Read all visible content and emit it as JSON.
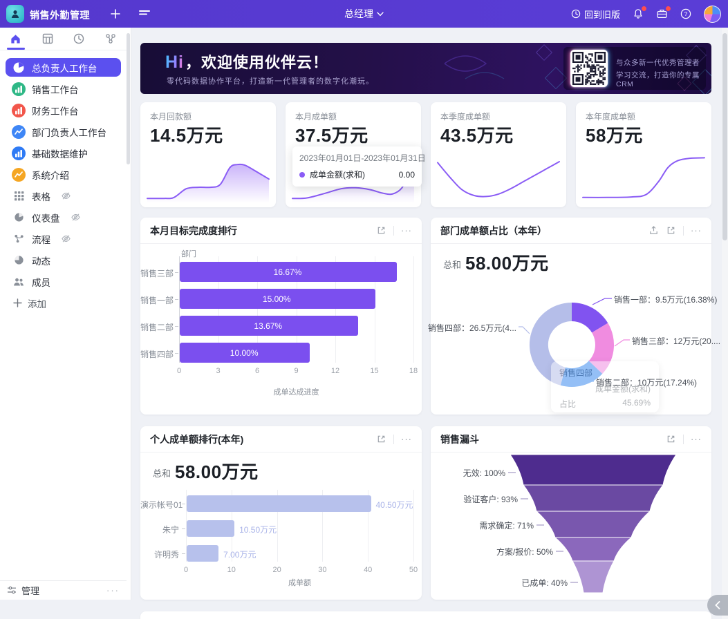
{
  "topbar": {
    "app_title": "销售外勤管理",
    "role": "总经理",
    "back_to_old_label": "回到旧版"
  },
  "sidebar": {
    "tabs": [
      {
        "icon": "home-icon",
        "active": true
      },
      {
        "icon": "table-icon",
        "active": false
      },
      {
        "icon": "clock-icon",
        "active": false
      },
      {
        "icon": "workflow-icon",
        "active": false
      }
    ],
    "items": [
      {
        "label": "总负责人工作台",
        "icon": "pie-chart-icon",
        "bg": "",
        "active": true
      },
      {
        "label": "销售工作台",
        "icon": "bar-chart-icon",
        "bg": "#2FB886"
      },
      {
        "label": "财务工作台",
        "icon": "bar-chart-icon",
        "bg": "#F2564B"
      },
      {
        "label": "部门负责人工作台",
        "icon": "line-chart-icon",
        "bg": "#3E86F6"
      },
      {
        "label": "基础数据维护",
        "icon": "bar-chart-icon",
        "bg": "#2F7BF5"
      },
      {
        "label": "系统介绍",
        "icon": "line-chart-icon",
        "bg": "#F5A623"
      },
      {
        "label": "表格",
        "icon": "grid-icon",
        "grey": true,
        "hidden_eye": true
      },
      {
        "label": "仪表盘",
        "icon": "dashboard-icon",
        "grey": true,
        "hidden_eye": true
      },
      {
        "label": "流程",
        "icon": "flow-icon",
        "grey": true,
        "hidden_eye": true
      },
      {
        "label": "动态",
        "icon": "activity-icon",
        "grey": true
      },
      {
        "label": "成员",
        "icon": "members-icon",
        "grey": true
      }
    ],
    "add_label": "添加",
    "footer_label": "管理"
  },
  "banner": {
    "hi": "Hi",
    "title_rest": "，欢迎使用伙伴云！",
    "subtitle": "零代码数据协作平台，打造新一代管理者的数字化潮玩。",
    "qr_caption_line1": "与众多新一代优秀管理者",
    "qr_caption_line2": "学习交流，打造你的专属CRM"
  },
  "stat_cards": [
    {
      "label": "本月回款额",
      "value": "14.5万元",
      "spark": "area",
      "points": [
        [
          0,
          4
        ],
        [
          14,
          4
        ],
        [
          22,
          6
        ],
        [
          32,
          24
        ],
        [
          42,
          27
        ],
        [
          52,
          27
        ],
        [
          60,
          33
        ],
        [
          68,
          68
        ],
        [
          74,
          74
        ],
        [
          80,
          73
        ],
        [
          88,
          62
        ],
        [
          100,
          44
        ]
      ]
    },
    {
      "label": "本月成单额",
      "value": "37.5万元",
      "spark": "area",
      "points": [
        [
          0,
          4
        ],
        [
          12,
          5
        ],
        [
          26,
          14
        ],
        [
          40,
          24
        ],
        [
          52,
          26
        ],
        [
          64,
          22
        ],
        [
          74,
          15
        ],
        [
          82,
          13
        ],
        [
          90,
          26
        ],
        [
          96,
          60
        ],
        [
          100,
          92
        ]
      ],
      "tooltip": {
        "date_range": "2023年01月01日-2023年01月31日",
        "series": "成单金额(求和)",
        "value": "0.00",
        "dot_color": "#8B5CF6"
      }
    },
    {
      "label": "本季度成单额",
      "value": "43.5万元",
      "spark": "line",
      "points": [
        [
          0,
          78
        ],
        [
          10,
          48
        ],
        [
          20,
          22
        ],
        [
          30,
          10
        ],
        [
          40,
          8
        ],
        [
          50,
          13
        ],
        [
          60,
          24
        ],
        [
          70,
          38
        ],
        [
          80,
          52
        ],
        [
          90,
          66
        ],
        [
          100,
          80
        ]
      ]
    },
    {
      "label": "本年度成单额",
      "value": "58万元",
      "spark": "line",
      "points": [
        [
          0,
          6
        ],
        [
          20,
          6
        ],
        [
          40,
          7
        ],
        [
          52,
          12
        ],
        [
          62,
          38
        ],
        [
          70,
          68
        ],
        [
          78,
          82
        ],
        [
          88,
          87
        ],
        [
          100,
          88
        ]
      ]
    }
  ],
  "accent_color": "#5B50EF",
  "spark_color": "#8A5CF5",
  "chart_data": [
    {
      "id": "monthly_target",
      "type": "bar",
      "orientation": "horizontal",
      "title": "本月目标完成度排行",
      "axis_title": "部门",
      "categories": [
        "销售三部",
        "销售一部",
        "销售二部",
        "销售四部"
      ],
      "values": [
        16.67,
        15.0,
        13.67,
        10.0
      ],
      "value_labels": [
        "16.67%",
        "15.00%",
        "13.67%",
        "10.00%"
      ],
      "xlabel": "成单达成进度",
      "xlim": [
        0,
        18
      ],
      "xticks": [
        0,
        3,
        6,
        9,
        12,
        15,
        18
      ],
      "bar_color": "#7B4FEF",
      "grid": true
    },
    {
      "id": "dept_share",
      "type": "pie",
      "title": "部门成单额占比（本年）",
      "total_label": "总和",
      "total_value": "58.00万元",
      "slices": [
        {
          "name": "销售一部",
          "value": 9.5,
          "pct": 16.38,
          "label": "销售一部：9.5万元(16.38%)",
          "color": "#8153F0"
        },
        {
          "name": "销售三部",
          "value": 12,
          "pct": 20.69,
          "label": "销售三部：12万元(20....",
          "color": "#F08CE0"
        },
        {
          "name": "销售二部",
          "value": 10,
          "pct": 17.24,
          "label": "销售二部：10万元(17.24%)",
          "color": "#3C8AEF"
        },
        {
          "name": "销售四部",
          "value": 26.5,
          "pct": 45.69,
          "label": "销售四部：26.5万元(4...",
          "color": "#B5BEE9"
        }
      ],
      "tooltip": {
        "title": "销售四部",
        "row_label": "成单金额(求和)",
        "pct_label": "占比",
        "pct_value": "45.69%"
      }
    },
    {
      "id": "personal_rank",
      "type": "bar",
      "orientation": "horizontal",
      "title": "个人成单额排行(本年)",
      "total_label": "总和",
      "total_value": "58.00万元",
      "categories": [
        "演示帐号01",
        "朱宁",
        "许明秀"
      ],
      "values": [
        40.5,
        10.5,
        7.0
      ],
      "value_labels": [
        "40.50万元",
        "10.50万元",
        "7.00万元"
      ],
      "xlabel": "成单额",
      "xlim": [
        0,
        50
      ],
      "xticks": [
        0,
        10,
        20,
        30,
        40,
        50
      ],
      "bar_color": "#B7C1EC",
      "grid": true
    },
    {
      "id": "sales_funnel",
      "type": "funnel",
      "title": "销售漏斗",
      "stages": [
        {
          "label": "无效: 100%",
          "pct": 100,
          "color": "#4E2C8E"
        },
        {
          "label": "验证客户: 93%",
          "pct": 93,
          "color": "#6A49A2"
        },
        {
          "label": "需求确定: 71%",
          "pct": 71,
          "color": "#7957AE"
        },
        {
          "label": "方案/报价: 50%",
          "pct": 50,
          "color": "#8B68BC"
        },
        {
          "label": "已成单: 40%",
          "pct": 40,
          "color": "#AE94D3"
        }
      ]
    }
  ]
}
